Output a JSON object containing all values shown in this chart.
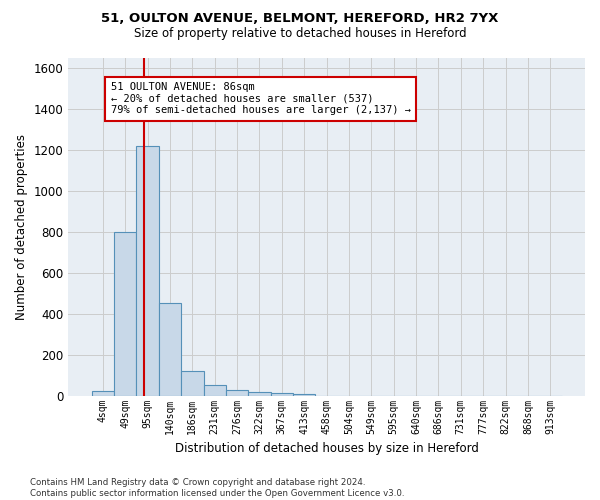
{
  "title_line1": "51, OULTON AVENUE, BELMONT, HEREFORD, HR2 7YX",
  "title_line2": "Size of property relative to detached houses in Hereford",
  "xlabel": "Distribution of detached houses by size in Hereford",
  "ylabel": "Number of detached properties",
  "bar_labels": [
    "4sqm",
    "49sqm",
    "95sqm",
    "140sqm",
    "186sqm",
    "231sqm",
    "276sqm",
    "322sqm",
    "367sqm",
    "413sqm",
    "458sqm",
    "504sqm",
    "549sqm",
    "595sqm",
    "640sqm",
    "686sqm",
    "731sqm",
    "777sqm",
    "822sqm",
    "868sqm",
    "913sqm"
  ],
  "bar_values": [
    25,
    800,
    1220,
    450,
    120,
    50,
    27,
    20,
    15,
    10,
    0,
    0,
    0,
    0,
    0,
    0,
    0,
    0,
    0,
    0,
    0
  ],
  "bar_color": "#c8d8e8",
  "bar_edgecolor": "#5590b8",
  "ylim": [
    0,
    1650
  ],
  "yticks": [
    0,
    200,
    400,
    600,
    800,
    1000,
    1200,
    1400,
    1600
  ],
  "grid_color": "#cccccc",
  "bg_color": "#e8eef4",
  "annotation_line1": "51 OULTON AVENUE: 86sqm",
  "annotation_line2": "← 20% of detached houses are smaller (537)",
  "annotation_line3": "79% of semi-detached houses are larger (2,137) →",
  "vline_color": "#cc0000",
  "vline_x_idx": 1.85,
  "footnote": "Contains HM Land Registry data © Crown copyright and database right 2024.\nContains public sector information licensed under the Open Government Licence v3.0."
}
